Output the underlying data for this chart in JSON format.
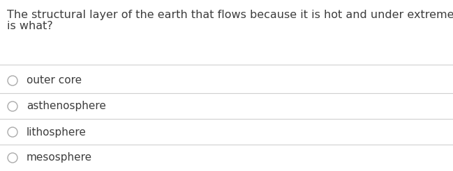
{
  "question_line1": "The structural layer of the earth that flows because it is hot and under extreme pressure",
  "question_line2": "is what?",
  "options": [
    "outer core",
    "asthenosphere",
    "lithosphere",
    "mesosphere"
  ],
  "background_color": "#ffffff",
  "text_color": "#3d3d3d",
  "question_fontsize": 11.5,
  "option_fontsize": 11,
  "circle_color": "#aaaaaa",
  "line_color": "#d0d0d0",
  "fig_width": 6.49,
  "fig_height": 2.46,
  "dpi": 100
}
